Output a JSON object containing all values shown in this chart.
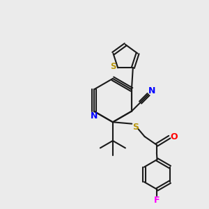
{
  "bg_color": "#ebebeb",
  "bond_color": "#1a1a1a",
  "N_color": "#0000ff",
  "S_color": "#b8960c",
  "O_color": "#ff0000",
  "F_color": "#ff00ff",
  "figsize": [
    3.0,
    3.0
  ],
  "dpi": 100,
  "xlim": [
    0,
    10
  ],
  "ylim": [
    0,
    10
  ]
}
